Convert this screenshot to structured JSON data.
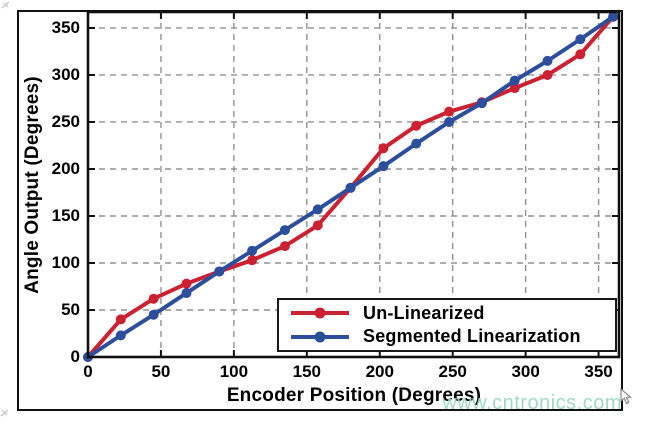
{
  "figure": {
    "watermark": "www.cntronics.com"
  },
  "colors": {
    "unlinearized_red": "#cc2130",
    "segmented_blue": "#2c4e9d",
    "grid_gray": "#929292",
    "frame_black": "#111111",
    "watermark_green": "#9bd8c2"
  },
  "chart_data": {
    "type": "line",
    "title": "",
    "xlabel": "Encoder Position (Degrees)",
    "ylabel": "Angle Output (Degrees)",
    "xlim": [
      0,
      364
    ],
    "ylim": [
      0,
      367
    ],
    "xticks": [
      0,
      50,
      100,
      150,
      200,
      250,
      300,
      350
    ],
    "yticks": [
      0,
      50,
      100,
      150,
      200,
      250,
      300,
      350
    ],
    "grid": "dashed",
    "legend_position": "inside-bottom-right",
    "x": [
      0,
      22.5,
      45,
      67.5,
      90,
      112.5,
      135,
      157.5,
      180,
      202.5,
      225,
      247.5,
      270,
      292.5,
      315,
      337.5,
      360
    ],
    "series": [
      {
        "name": "Un-Linearized",
        "color": "#cc2130",
        "values": [
          0,
          40,
          62,
          78,
          91,
          103,
          118,
          140,
          180,
          222,
          246,
          261,
          271,
          286,
          300,
          322,
          362
        ]
      },
      {
        "name": "Segmented Linearization",
        "color": "#2c4e9d",
        "values": [
          0,
          23,
          45,
          68,
          91,
          113,
          135,
          157,
          180,
          203,
          227,
          250,
          270,
          294,
          315,
          338,
          362
        ]
      }
    ]
  }
}
